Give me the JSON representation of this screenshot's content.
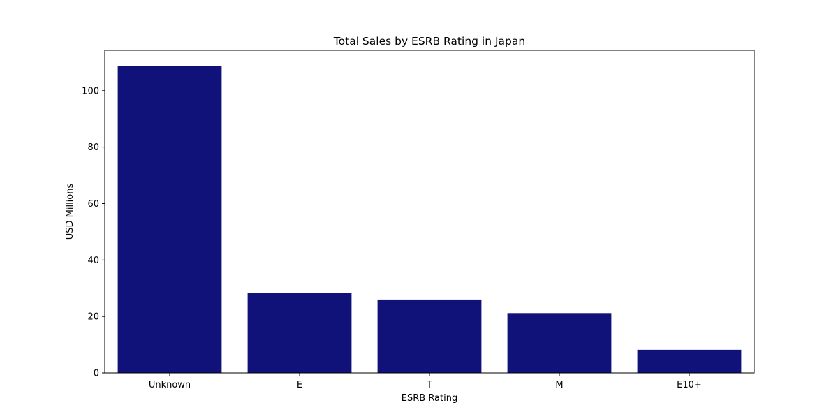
{
  "chart_data": {
    "type": "bar",
    "title": "Total Sales by ESRB Rating in Japan",
    "xlabel": "ESRB Rating",
    "ylabel": "USD Millions",
    "categories": [
      "Unknown",
      "E",
      "T",
      "M",
      "E10+"
    ],
    "values": [
      108.8,
      28.4,
      26.0,
      21.2,
      8.2
    ],
    "ylim": [
      0,
      114.3
    ],
    "yticks": [
      0,
      20,
      40,
      60,
      80,
      100
    ],
    "grid": false,
    "bar_color": "#10127a"
  }
}
